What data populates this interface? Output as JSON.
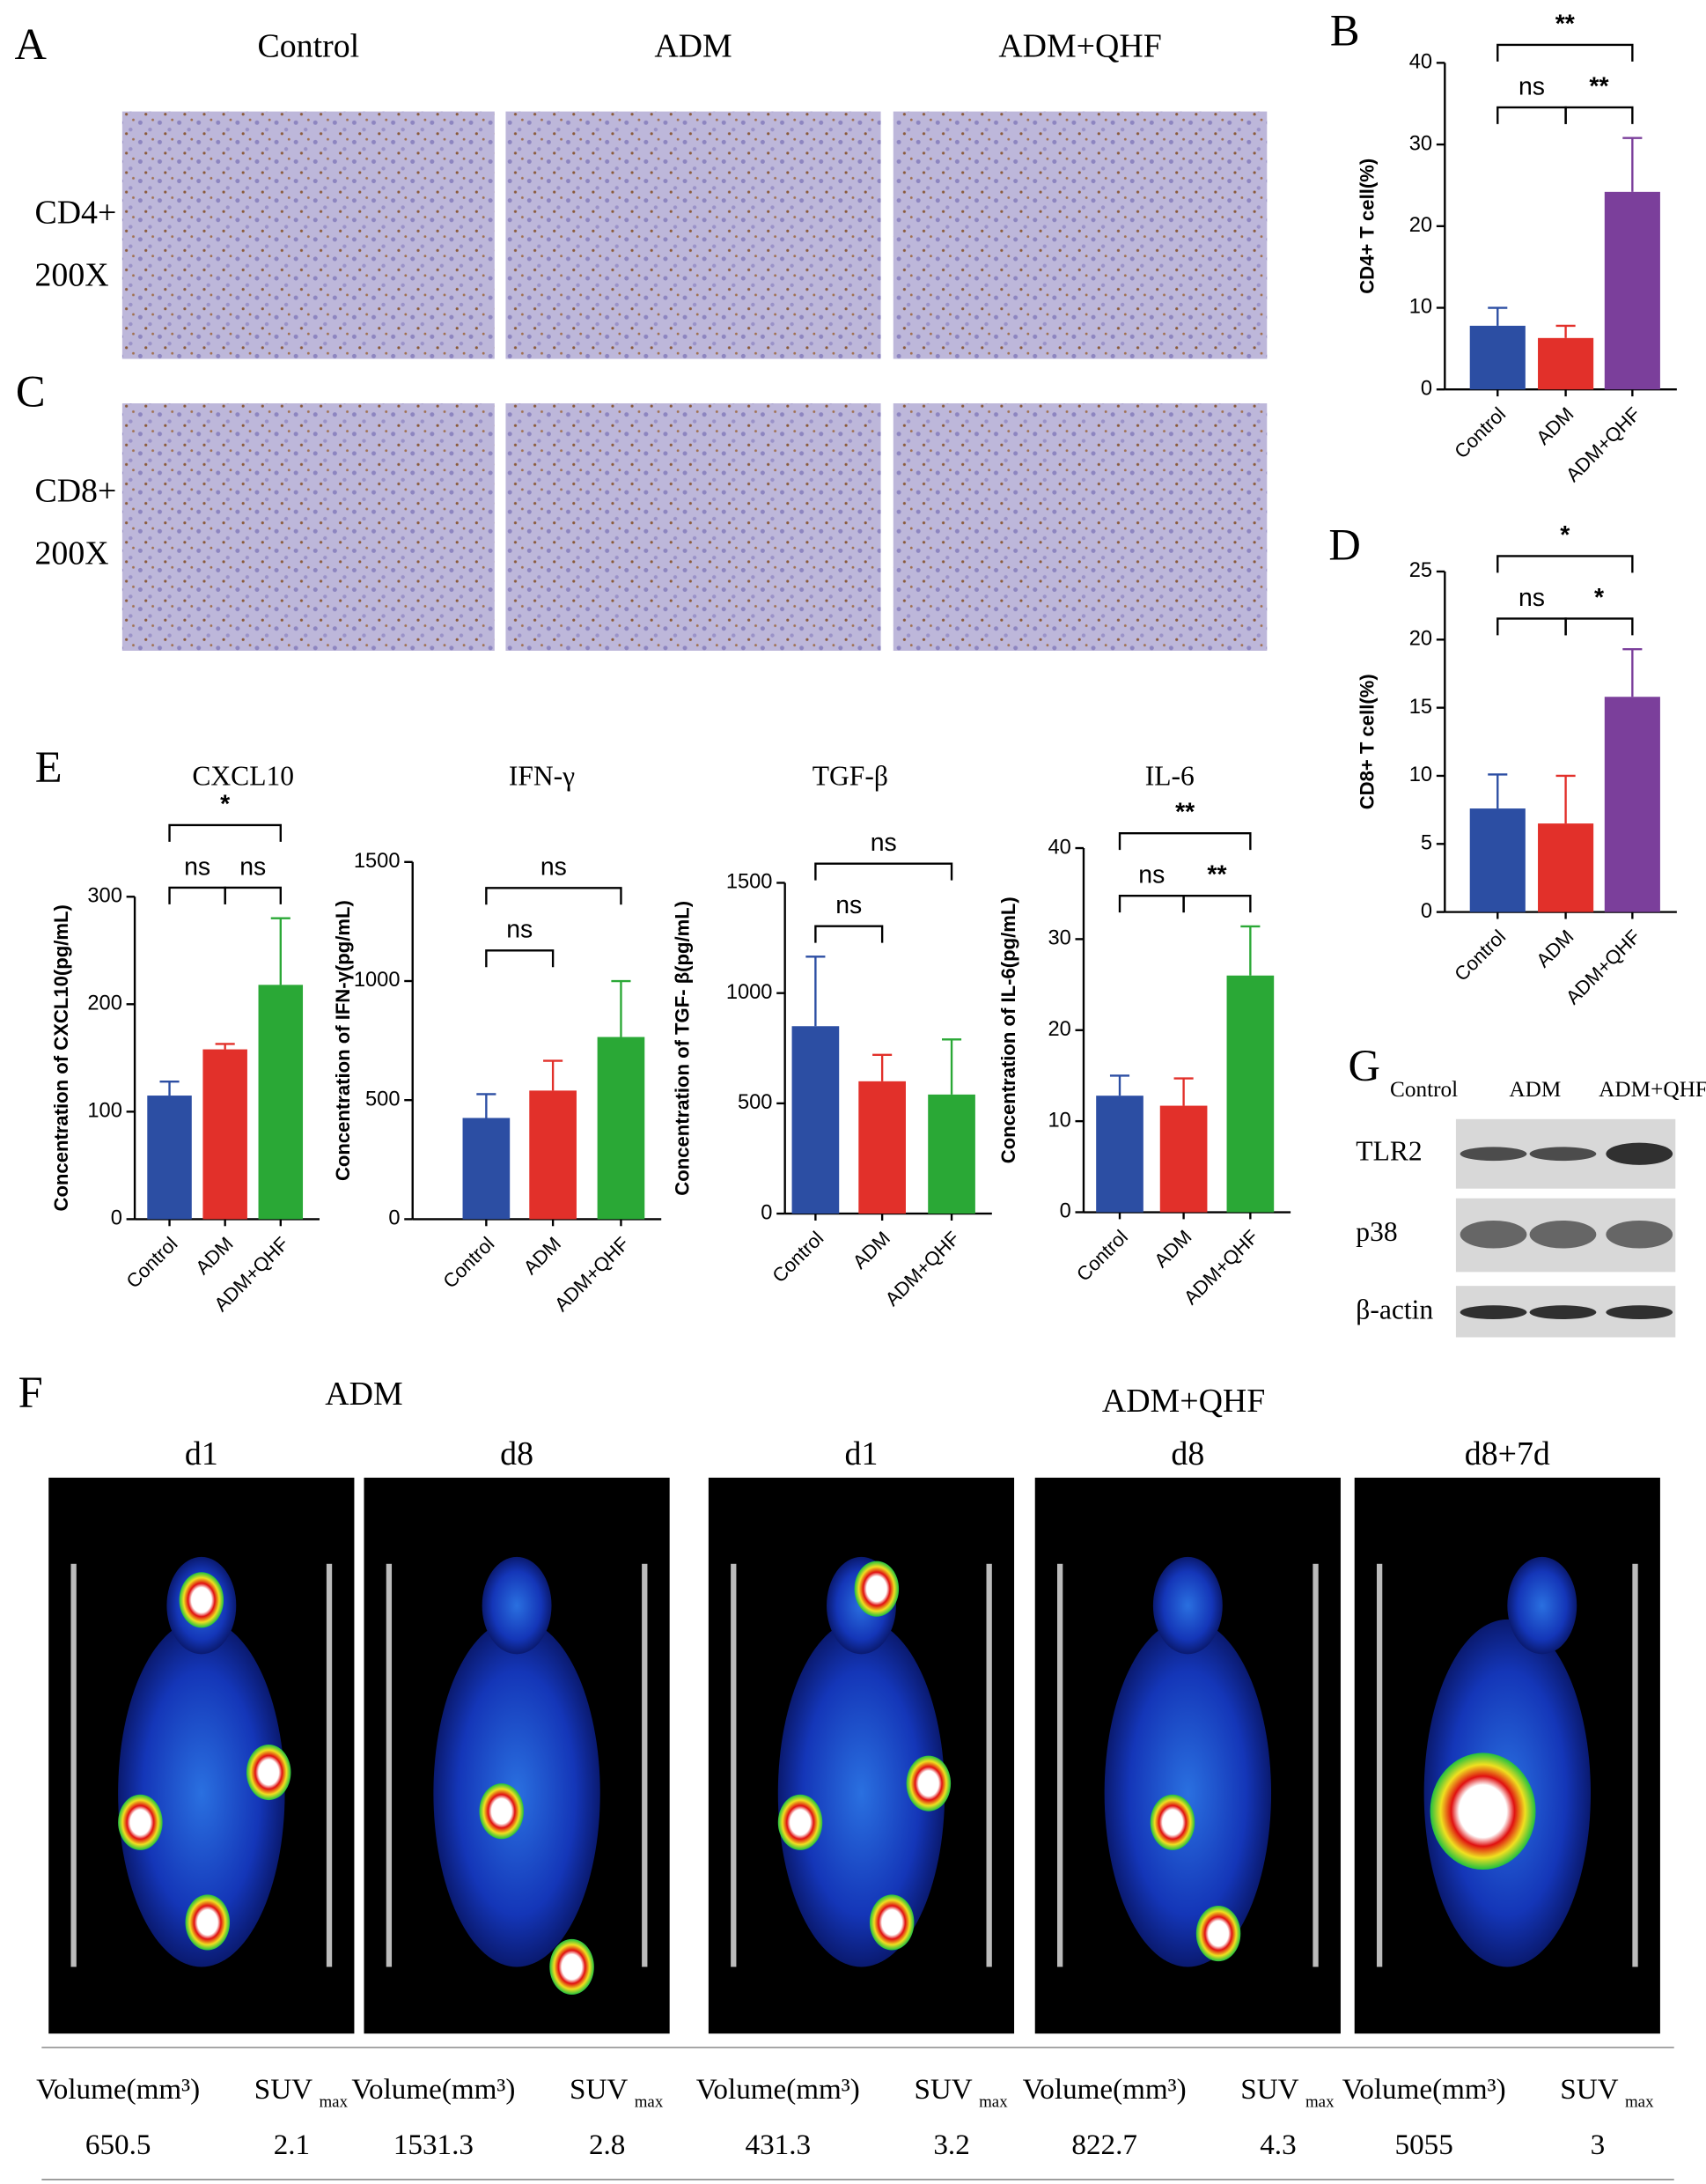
{
  "panel_labels": [
    "A",
    "B",
    "C",
    "D",
    "E",
    "F",
    "G"
  ],
  "micrographs": {
    "columns": [
      "Control",
      "ADM",
      "ADM+QHF"
    ],
    "rows": [
      [
        "CD4+",
        "200X"
      ],
      [
        "CD8+",
        "200X"
      ]
    ]
  },
  "chart_data": [
    {
      "type": "bar",
      "y_label": "CD4+ T cell(%)",
      "categories": [
        "Control",
        "ADM",
        "ADM+QHF"
      ],
      "colors": [
        "#2c4ea3",
        "#e2302a",
        "#7b3f9b"
      ],
      "values": [
        7.8,
        6.3,
        24.2
      ],
      "errors": [
        2.2,
        1.5,
        6.6
      ],
      "ylim": [
        0,
        40
      ],
      "yticks": [
        0,
        10,
        20,
        30,
        40
      ],
      "significance": [
        {
          "between": [
            "Control",
            "ADM"
          ],
          "label": "ns"
        },
        {
          "between": [
            "ADM",
            "ADM+QHF"
          ],
          "label": "**"
        },
        {
          "between": [
            "Control",
            "ADM+QHF"
          ],
          "label": "**"
        }
      ]
    },
    {
      "type": "bar",
      "y_label": "CD8+ T cell(%)",
      "categories": [
        "Control",
        "ADM",
        "ADM+QHF"
      ],
      "colors": [
        "#2c4ea3",
        "#e2302a",
        "#7b3f9b"
      ],
      "values": [
        7.6,
        6.5,
        15.8
      ],
      "errors": [
        2.5,
        3.5,
        3.5
      ],
      "ylim": [
        0,
        25
      ],
      "yticks": [
        0,
        5,
        10,
        15,
        20,
        25
      ],
      "significance": [
        {
          "between": [
            "Control",
            "ADM"
          ],
          "label": "ns"
        },
        {
          "between": [
            "ADM",
            "ADM+QHF"
          ],
          "label": "*"
        },
        {
          "between": [
            "Control",
            "ADM+QHF"
          ],
          "label": "*"
        }
      ]
    },
    {
      "type": "bar",
      "title": "CXCL10",
      "y_label": "Concentration of CXCL10(pg/mL)",
      "categories": [
        "Control",
        "ADM",
        "ADM+QHF"
      ],
      "colors": [
        "#2c4ea3",
        "#e2302a",
        "#2aa836"
      ],
      "values": [
        115,
        158,
        218
      ],
      "errors": [
        13,
        5,
        62
      ],
      "ylim": [
        0,
        300
      ],
      "yticks": [
        0,
        100,
        200,
        300
      ],
      "significance": [
        {
          "between": [
            "Control",
            "ADM"
          ],
          "label": "ns"
        },
        {
          "between": [
            "ADM",
            "ADM+QHF"
          ],
          "label": "ns"
        },
        {
          "between": [
            "Control",
            "ADM+QHF"
          ],
          "label": "*"
        }
      ]
    },
    {
      "type": "bar",
      "title": "IFN-γ",
      "y_label": "Concentration of IFN-γ(pg/mL)",
      "categories": [
        "Control",
        "ADM",
        "ADM+QHF"
      ],
      "colors": [
        "#2c4ea3",
        "#e2302a",
        "#2aa836"
      ],
      "values": [
        425,
        540,
        765
      ],
      "errors": [
        100,
        125,
        235
      ],
      "ylim": [
        0,
        1500
      ],
      "yticks": [
        0,
        500,
        1000,
        1500
      ],
      "significance": [
        {
          "between": [
            "Control",
            "ADM"
          ],
          "label": "ns"
        },
        {
          "between": [
            "Control",
            "ADM+QHF"
          ],
          "label": "ns"
        }
      ]
    },
    {
      "type": "bar",
      "title": "TGF-β",
      "y_label": "Concentration of TGF- β(pg/mL)",
      "categories": [
        "Control",
        "ADM",
        "ADM+QHF"
      ],
      "colors": [
        "#2c4ea3",
        "#e2302a",
        "#2aa836"
      ],
      "values": [
        850,
        600,
        540
      ],
      "errors": [
        315,
        120,
        250
      ],
      "ylim": [
        0,
        1500
      ],
      "yticks": [
        0,
        500,
        1000,
        1500
      ],
      "significance": [
        {
          "between": [
            "Control",
            "ADM"
          ],
          "label": "ns"
        },
        {
          "between": [
            "Control",
            "ADM+QHF"
          ],
          "label": "ns"
        }
      ]
    },
    {
      "type": "bar",
      "title": "IL-6",
      "y_label": "Concentration of IL-6(pg/mL)",
      "categories": [
        "Control",
        "ADM",
        "ADM+QHF"
      ],
      "colors": [
        "#2c4ea3",
        "#e2302a",
        "#2aa836"
      ],
      "values": [
        12.8,
        11.7,
        26
      ],
      "errors": [
        2.2,
        3,
        5.4
      ],
      "ylim": [
        0,
        40
      ],
      "yticks": [
        0,
        10,
        20,
        30,
        40
      ],
      "significance": [
        {
          "between": [
            "Control",
            "ADM"
          ],
          "label": "ns"
        },
        {
          "between": [
            "ADM",
            "ADM+QHF"
          ],
          "label": "**"
        },
        {
          "between": [
            "Control",
            "ADM+QHF"
          ],
          "label": "**"
        }
      ]
    }
  ],
  "western_blot": {
    "lanes": [
      "Control",
      "ADM",
      "ADM+QHF"
    ],
    "proteins": [
      "TLR2",
      "p38",
      "β-actin"
    ]
  },
  "pet": {
    "groups": [
      "ADM",
      "ADM+QHF"
    ],
    "timepoints": [
      "d1",
      "d8",
      "d1",
      "d8",
      "d8+7d"
    ],
    "volume_header": "Volume(mm³)",
    "suv_header": "SUV",
    "suv_subscript": "max",
    "volumes": [
      650.5,
      1531.3,
      431.3,
      822.7,
      5055
    ],
    "suv_max": [
      2.1,
      2.8,
      3.2,
      4.3,
      3
    ]
  }
}
